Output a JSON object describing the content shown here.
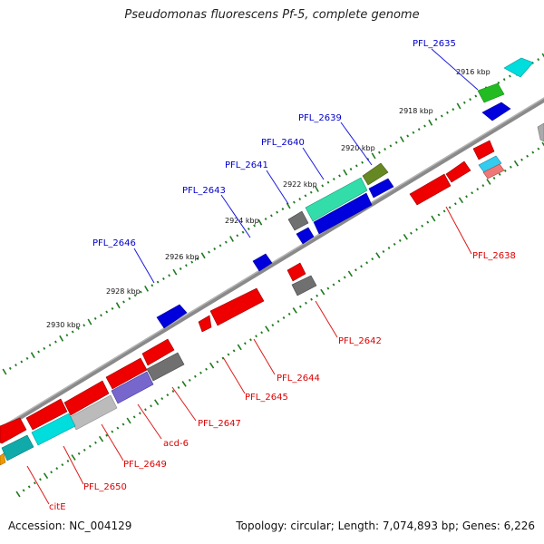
{
  "title": "Pseudomonas fluorescens Pf-5, complete genome",
  "footer": {
    "accession": "Accession: NC_004129",
    "topology": "Topology: circular; Length: 7,074,893 bp; Genes: 6,226"
  },
  "colors": {
    "backbone": "#808080",
    "forward_label": "#0000cc",
    "reverse_label": "#dd0000",
    "tick": "#1f7a1f"
  },
  "scale_labels": [
    "2916 kbp",
    "2918 kbp",
    "2920 kbp",
    "2922 kbp",
    "2924 kbp",
    "2926 kbp",
    "2928 kbp",
    "2930 kbp"
  ],
  "forward_labels": [
    "PFL_2635",
    "PFL_2639",
    "PFL_2640",
    "PFL_2641",
    "PFL_2643",
    "PFL_2646"
  ],
  "reverse_labels": [
    "PFL_2638",
    "PFL_2642",
    "PFL_2644",
    "PFL_2645",
    "PFL_2647",
    "acd-6",
    "PFL_2649",
    "PFL_2650",
    "citE"
  ]
}
